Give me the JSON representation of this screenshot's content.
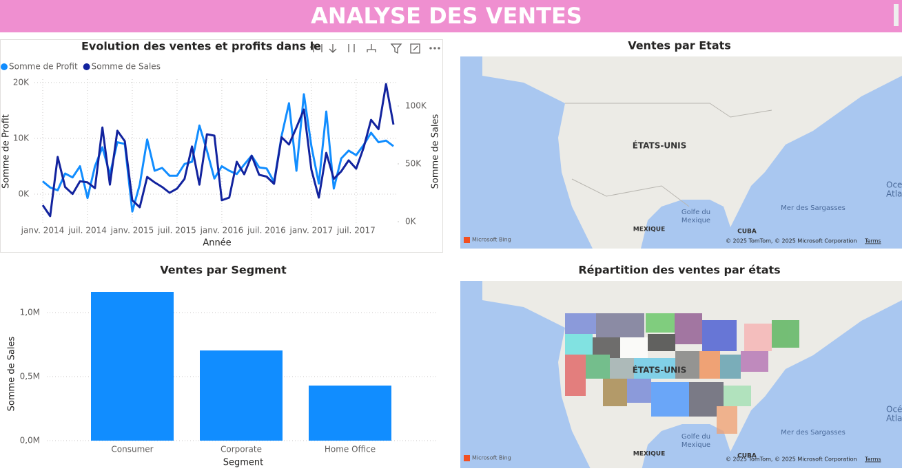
{
  "header": {
    "title": "ANALYSE DES VENTES"
  },
  "chart_data": [
    {
      "type": "line",
      "title": "Evolution des ventes et profits dans le",
      "x_label": "Année",
      "y_label": "Somme de Profit",
      "y2_label": "Somme de Sales",
      "categories": [
        "janv. 2014",
        null,
        null,
        null,
        null,
        null,
        "juil. 2014",
        null,
        null,
        null,
        null,
        null,
        "janv. 2015",
        null,
        null,
        null,
        null,
        null,
        "juil. 2015",
        null,
        null,
        null,
        null,
        null,
        "janv. 2016",
        null,
        null,
        null,
        null,
        null,
        "juil. 2016",
        null,
        null,
        null,
        null,
        null,
        "janv. 2017",
        null,
        null,
        null,
        null,
        null,
        "juil. 2017",
        null,
        null,
        null,
        null,
        null
      ],
      "series": [
        {
          "name": "Somme de Profit",
          "color": "#118dff",
          "values": [
            2300,
            1200,
            700,
            3700,
            3000,
            5000,
            -700,
            5000,
            8400,
            3500,
            9300,
            9000,
            -3100,
            1700,
            9800,
            4200,
            4700,
            3300,
            3300,
            5400,
            5800,
            12300,
            7800,
            2800,
            5000,
            4200,
            3600,
            5300,
            6900,
            4800,
            4600,
            2200,
            10400,
            16300,
            4200,
            17900,
            8600,
            1900,
            14800,
            1000,
            6400,
            7800,
            7000,
            8800,
            11000,
            9300,
            9600,
            8600
          ]
        },
        {
          "name": "Somme de Sales",
          "color": "#12239e",
          "axis": "y2",
          "values": [
            14300,
            4800,
            56000,
            30000,
            24000,
            35000,
            34000,
            29000,
            81500,
            32000,
            78600,
            69600,
            18500,
            12500,
            38700,
            34000,
            30000,
            25000,
            28600,
            37000,
            65000,
            32000,
            75600,
            74400,
            18500,
            20800,
            51800,
            41000,
            57000,
            40500,
            39000,
            32700,
            73000,
            66700,
            81500,
            97000,
            45000,
            20800,
            59500,
            37000,
            43500,
            53000,
            45800,
            64000,
            88000,
            80000,
            119000,
            84000
          ]
        }
      ],
      "ylim": [
        -5300,
        20600
      ],
      "yticks": [
        {
          "value": 0,
          "label": "0K"
        },
        {
          "value": 10000,
          "label": "10K"
        },
        {
          "value": 20000,
          "label": "20K"
        }
      ],
      "y2lim": [
        -1800,
        123200
      ],
      "y2ticks": [
        {
          "value": 0,
          "label": "0K"
        },
        {
          "value": 50000,
          "label": "50K"
        },
        {
          "value": 100000,
          "label": "100K"
        }
      ],
      "grid": true
    },
    {
      "type": "bar",
      "title": "Ventes par Segment",
      "x_label": "Segment",
      "y_label": "Somme de Sales",
      "categories": [
        "Consumer",
        "Corporate",
        "Home Office"
      ],
      "values": [
        1161000,
        704000,
        430000
      ],
      "color": "#118dff",
      "ylim": [
        0,
        1290000
      ],
      "yticks": [
        {
          "value": 0,
          "label": "0,0M"
        },
        {
          "value": 500000,
          "label": "0,5M"
        },
        {
          "value": 1000000,
          "label": "1,0M"
        }
      ],
      "grid": true
    }
  ],
  "maps": [
    {
      "title": "Ventes par Etats",
      "country": "ÉTATS-UNIS",
      "gulf": [
        "Golfe du",
        "Mexique"
      ],
      "sea": "Mer des Sargasses",
      "mexico": "MEXIQUE",
      "cuba": "CUBA",
      "ocean": [
        "Oce",
        "Atlant"
      ],
      "brand": "Microsoft Bing",
      "copyright": "© 2025 TomTom, © 2025 Microsoft Corporation",
      "terms": "Terms"
    },
    {
      "title": "Répartition des ventes par états",
      "country": "ÉTATS-UNIS",
      "gulf": [
        "Golfe du",
        "Mexique"
      ],
      "sea": "Mer des Sargasses",
      "mexico": "MEXIQUE",
      "cuba": "CUBA",
      "ocean": [
        "Océ",
        "Atlant"
      ],
      "brand": "Microsoft Bing",
      "copyright": "© 2025 TomTom, © 2025 Microsoft Corporation",
      "terms": "Terms"
    }
  ]
}
